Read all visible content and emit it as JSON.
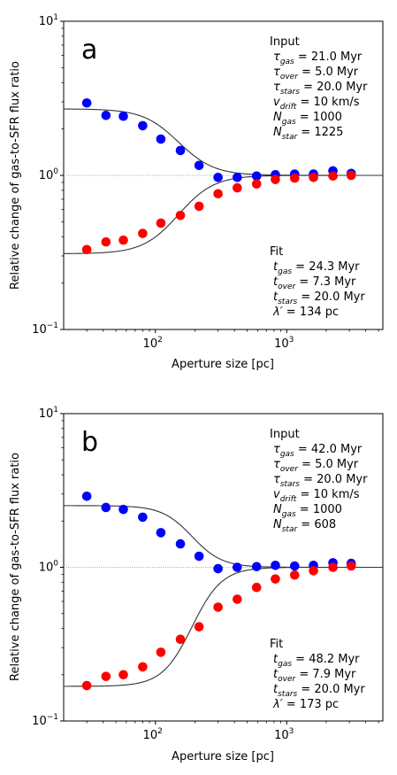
{
  "chart_data": [
    {
      "type": "scatter",
      "panel_label": "a",
      "xlabel": "Aperture size [pc]",
      "ylabel": "Relative change of gas-to-SFR flux ratio",
      "xscale": "log",
      "yscale": "log",
      "xlim": [
        20,
        5400
      ],
      "ylim": [
        0.1,
        10
      ],
      "x_ticks": [
        {
          "value": 100,
          "base": "10",
          "exp": "2"
        },
        {
          "value": 1000,
          "base": "10",
          "exp": "3"
        }
      ],
      "y_ticks": [
        {
          "value": 0.1,
          "base": "10",
          "exp": "−1"
        },
        {
          "value": 1,
          "base": "10",
          "exp": "0"
        },
        {
          "value": 10,
          "base": "10",
          "exp": "1"
        }
      ],
      "reference_line_y": 1,
      "series": [
        {
          "color": "#0000ff",
          "x": [
            30,
            42,
            57,
            80,
            110,
            155,
            215,
            300,
            420,
            590,
            820,
            1150,
            1600,
            2250,
            3100
          ],
          "y": [
            2.95,
            2.45,
            2.42,
            2.1,
            1.72,
            1.45,
            1.16,
            0.97,
            0.97,
            0.99,
            1.01,
            1.02,
            1.02,
            1.07,
            1.03
          ]
        },
        {
          "color": "#ff0000",
          "x": [
            30,
            42,
            57,
            80,
            110,
            155,
            215,
            300,
            420,
            590,
            820,
            1150,
            1600,
            2250,
            3100
          ],
          "y": [
            0.33,
            0.37,
            0.38,
            0.42,
            0.49,
            0.55,
            0.63,
            0.76,
            0.83,
            0.88,
            0.94,
            0.96,
            0.97,
            0.99,
            1.0
          ]
        }
      ],
      "fit_curves": {
        "upper_start": 2.7,
        "lower_start": 0.31,
        "midpoint": 150,
        "steepness": 3.2
      },
      "input_box": {
        "title": "Input",
        "lines": [
          {
            "sym": "τ",
            "sub": "gas",
            "val": " = 21.0 Myr"
          },
          {
            "sym": "τ",
            "sub": "over",
            "val": " = 5.0 Myr"
          },
          {
            "sym": "τ",
            "sub": "stars",
            "val": " = 20.0 Myr"
          },
          {
            "sym": "v",
            "sub": "drift",
            "val": " = 10 km/s"
          },
          {
            "sym": "N",
            "sub": "gas",
            "val": "  = 1000"
          },
          {
            "sym": "N",
            "sub": "star",
            "val": " = 1225"
          }
        ]
      },
      "fit_box": {
        "title": "Fit",
        "lines": [
          {
            "sym": "t",
            "sub": "gas",
            "val": "  = 24.3 Myr"
          },
          {
            "sym": "t",
            "sub": "over",
            "val": " = 7.3 Myr"
          },
          {
            "sym": "t",
            "sub": "stars",
            "val": " = 20.0 Myr"
          },
          {
            "sym": "λ′",
            "sub": "",
            "val": " = 134 pc"
          }
        ]
      }
    },
    {
      "type": "scatter",
      "panel_label": "b",
      "xlabel": "Aperture size [pc]",
      "ylabel": "Relative change of gas-to-SFR flux ratio",
      "xscale": "log",
      "yscale": "log",
      "xlim": [
        20,
        5400
      ],
      "ylim": [
        0.1,
        10
      ],
      "x_ticks": [
        {
          "value": 100,
          "base": "10",
          "exp": "2"
        },
        {
          "value": 1000,
          "base": "10",
          "exp": "3"
        }
      ],
      "y_ticks": [
        {
          "value": 0.1,
          "base": "10",
          "exp": "−1"
        },
        {
          "value": 1,
          "base": "10",
          "exp": "0"
        },
        {
          "value": 10,
          "base": "10",
          "exp": "1"
        }
      ],
      "reference_line_y": 1,
      "series": [
        {
          "color": "#0000ff",
          "x": [
            30,
            42,
            57,
            80,
            110,
            155,
            215,
            300,
            420,
            590,
            820,
            1150,
            1600,
            2250,
            3100
          ],
          "y": [
            2.9,
            2.45,
            2.38,
            2.12,
            1.68,
            1.42,
            1.18,
            0.98,
            1.0,
            1.01,
            1.03,
            1.02,
            1.03,
            1.07,
            1.06
          ]
        },
        {
          "color": "#ff0000",
          "x": [
            30,
            42,
            57,
            80,
            110,
            155,
            215,
            300,
            420,
            590,
            820,
            1150,
            1600,
            2250,
            3100
          ],
          "y": [
            0.17,
            0.195,
            0.2,
            0.225,
            0.28,
            0.34,
            0.41,
            0.55,
            0.62,
            0.74,
            0.84,
            0.89,
            0.95,
            1.0,
            1.02
          ]
        }
      ],
      "fit_curves": {
        "upper_start": 2.52,
        "lower_start": 0.168,
        "midpoint": 190,
        "steepness": 3.8
      },
      "input_box": {
        "title": "Input",
        "lines": [
          {
            "sym": "τ",
            "sub": "gas",
            "val": " = 42.0 Myr"
          },
          {
            "sym": "τ",
            "sub": "over",
            "val": " = 5.0 Myr"
          },
          {
            "sym": "τ",
            "sub": "stars",
            "val": " = 20.0 Myr"
          },
          {
            "sym": "v",
            "sub": "drift",
            "val": " = 10 km/s"
          },
          {
            "sym": "N",
            "sub": "gas",
            "val": "  = 1000"
          },
          {
            "sym": "N",
            "sub": "star",
            "val": " = 608"
          }
        ]
      },
      "fit_box": {
        "title": "Fit",
        "lines": [
          {
            "sym": "t",
            "sub": "gas",
            "val": "  = 48.2 Myr"
          },
          {
            "sym": "t",
            "sub": "over",
            "val": " = 7.9 Myr"
          },
          {
            "sym": "t",
            "sub": "stars",
            "val": " = 20.0 Myr"
          },
          {
            "sym": "λ′",
            "sub": "",
            "val": " = 173 pc"
          }
        ]
      }
    }
  ]
}
